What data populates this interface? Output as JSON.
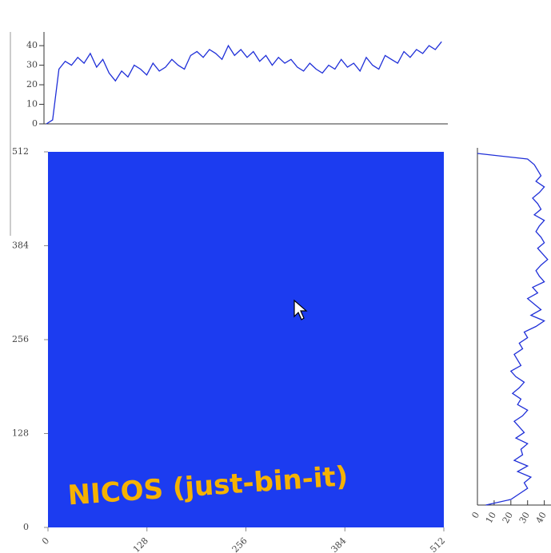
{
  "chart_data": [
    {
      "type": "line",
      "color": "#1f2fd8",
      "x": [
        0,
        8,
        16,
        24,
        32,
        40,
        48,
        56,
        64,
        72,
        80,
        88,
        96,
        104,
        112,
        120,
        128,
        136,
        144,
        152,
        160,
        168,
        176,
        184,
        192,
        200,
        208,
        216,
        224,
        232,
        240,
        248,
        256,
        264,
        272,
        280,
        288,
        296,
        304,
        312,
        320,
        328,
        336,
        344,
        352,
        360,
        368,
        376,
        384,
        392,
        400,
        408,
        416,
        424,
        432,
        440,
        448,
        456,
        464,
        472,
        480,
        488,
        496,
        504
      ],
      "values": [
        0,
        2,
        28,
        32,
        30,
        34,
        31,
        36,
        29,
        33,
        26,
        22,
        27,
        24,
        30,
        28,
        25,
        31,
        27,
        29,
        33,
        30,
        28,
        35,
        37,
        34,
        38,
        36,
        33,
        40,
        35,
        38,
        34,
        37,
        32,
        35,
        30,
        34,
        31,
        33,
        29,
        27,
        31,
        28,
        26,
        30,
        28,
        33,
        29,
        31,
        27,
        34,
        30,
        28,
        35,
        33,
        31,
        37,
        34,
        38,
        36,
        40,
        38,
        42
      ],
      "xlim": [
        0,
        512
      ],
      "ylim": [
        0,
        47
      ],
      "yticks": [
        0,
        10,
        20,
        30,
        40
      ]
    },
    {
      "type": "image",
      "color": "#1c3cf0",
      "xlim": [
        0,
        512
      ],
      "ylim": [
        0,
        512
      ],
      "xticks": [
        0,
        128,
        256,
        384,
        512
      ],
      "yticks": [
        0,
        128,
        256,
        384,
        512
      ],
      "annotation": "NICOS (just-bin-it)"
    },
    {
      "type": "hline",
      "color": "#1f2fd8",
      "y": [
        0,
        8,
        16,
        24,
        32,
        40,
        48,
        56,
        64,
        72,
        80,
        88,
        96,
        104,
        112,
        120,
        128,
        136,
        144,
        152,
        160,
        168,
        176,
        184,
        192,
        200,
        208,
        216,
        224,
        232,
        240,
        248,
        256,
        264,
        272,
        280,
        288,
        296,
        304,
        312,
        320,
        328,
        336,
        344,
        352,
        360,
        368,
        376,
        384,
        392,
        400,
        408,
        416,
        424,
        432,
        440,
        448,
        456,
        464,
        472,
        480,
        488,
        496,
        504
      ],
      "values": [
        5,
        20,
        25,
        30,
        28,
        32,
        24,
        30,
        22,
        27,
        26,
        30,
        23,
        28,
        25,
        22,
        27,
        30,
        24,
        26,
        21,
        25,
        28,
        23,
        20,
        26,
        24,
        22,
        27,
        25,
        30,
        28,
        35,
        40,
        32,
        38,
        34,
        30,
        36,
        33,
        40,
        37,
        35,
        38,
        42,
        39,
        36,
        40,
        38,
        35,
        37,
        40,
        34,
        38,
        36,
        33,
        37,
        40,
        35,
        38,
        36,
        34,
        30,
        0
      ],
      "xlim": [
        0,
        44
      ],
      "ylim": [
        0,
        512
      ],
      "xticks": [
        0,
        10,
        20,
        30,
        40
      ]
    }
  ]
}
